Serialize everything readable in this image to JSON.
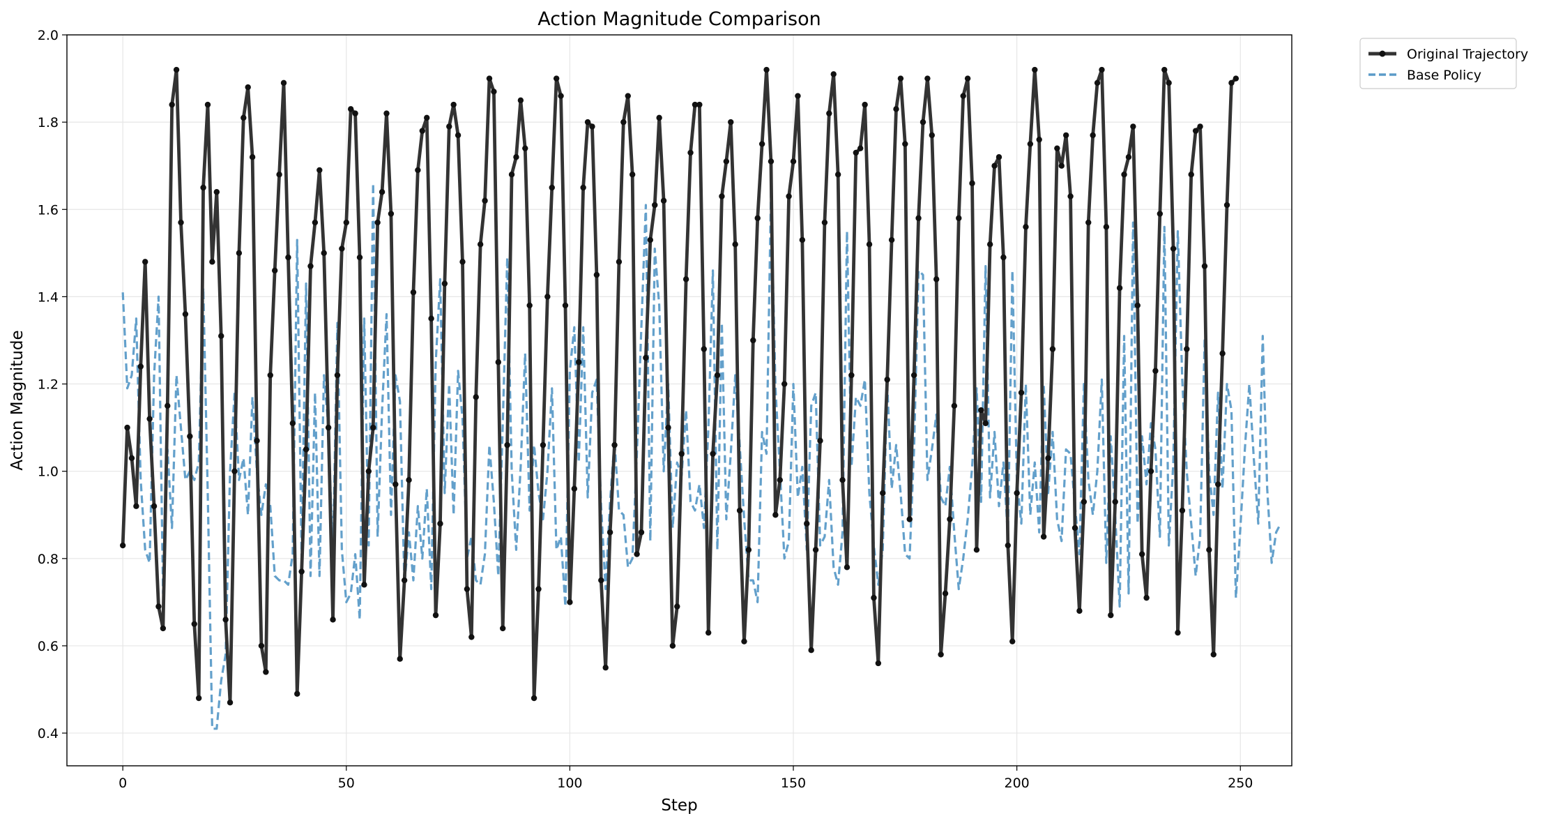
{
  "chart_data": {
    "type": "line",
    "title": "Action Magnitude Comparison",
    "xlabel": "Step",
    "ylabel": "Action Magnitude",
    "xlim": [
      -12.5,
      261.5
    ],
    "ylim": [
      0.325,
      2.0
    ],
    "xticks": [
      0,
      50,
      100,
      150,
      200,
      250
    ],
    "yticks": [
      0.4,
      0.6,
      0.8,
      1.0,
      1.2,
      1.4,
      1.6,
      1.8,
      2.0
    ],
    "grid": true,
    "legend": {
      "placement": "outside-top-right"
    },
    "series": [
      {
        "name": "Original Trajectory",
        "style": "solid-markers",
        "color": "#333333",
        "values": [
          0.83,
          1.1,
          1.03,
          0.92,
          1.24,
          1.48,
          1.12,
          0.92,
          0.69,
          0.64,
          1.15,
          1.84,
          1.92,
          1.57,
          1.36,
          1.08,
          0.65,
          0.48,
          1.65,
          1.84,
          1.48,
          1.64,
          1.31,
          0.66,
          0.47,
          1.0,
          1.5,
          1.81,
          1.88,
          1.72,
          1.07,
          0.6,
          0.54,
          1.22,
          1.46,
          1.68,
          1.89,
          1.49,
          1.11,
          0.49,
          0.77,
          1.05,
          1.47,
          1.57,
          1.69,
          1.5,
          1.1,
          0.66,
          1.22,
          1.51,
          1.57,
          1.83,
          1.82,
          1.49,
          0.74,
          1.0,
          1.1,
          1.57,
          1.64,
          1.82,
          1.59,
          0.97,
          0.57,
          0.75,
          0.98,
          1.41,
          1.69,
          1.78,
          1.81,
          1.35,
          0.67,
          0.88,
          1.43,
          1.79,
          1.84,
          1.77,
          1.48,
          0.73,
          0.62,
          1.17,
          1.52,
          1.62,
          1.9,
          1.87,
          1.25,
          0.64,
          1.06,
          1.68,
          1.72,
          1.85,
          1.74,
          1.38,
          0.48,
          0.73,
          1.06,
          1.4,
          1.65,
          1.9,
          1.86,
          1.38,
          0.7,
          0.96,
          1.25,
          1.65,
          1.8,
          1.79,
          1.45,
          0.75,
          0.55,
          0.86,
          1.06,
          1.48,
          1.8,
          1.86,
          1.68,
          0.81,
          0.86,
          1.26,
          1.53,
          1.61,
          1.81,
          1.62,
          1.1,
          0.6,
          0.69,
          1.04,
          1.44,
          1.73,
          1.84,
          1.84,
          1.28,
          0.63,
          1.04,
          1.22,
          1.63,
          1.71,
          1.8,
          1.52,
          0.91,
          0.61,
          0.82,
          1.3,
          1.58,
          1.75,
          1.92,
          1.71,
          0.9,
          0.98,
          1.2,
          1.63,
          1.71,
          1.86,
          1.53,
          0.88,
          0.59,
          0.82,
          1.07,
          1.57,
          1.82,
          1.91,
          1.68,
          0.98,
          0.78,
          1.22,
          1.73,
          1.74,
          1.84,
          1.52,
          0.71,
          0.56,
          0.95,
          1.21,
          1.53,
          1.83,
          1.9,
          1.75,
          0.89,
          1.22,
          1.58,
          1.8,
          1.9,
          1.77,
          1.44,
          0.58,
          0.72,
          0.89,
          1.15,
          1.58,
          1.86,
          1.9,
          1.66,
          0.82,
          1.14,
          1.11,
          1.52,
          1.7,
          1.72,
          1.49,
          0.83,
          0.61,
          0.95,
          1.18,
          1.56,
          1.75,
          1.92,
          1.76,
          0.85,
          1.03,
          1.28,
          1.74,
          1.7,
          1.77,
          1.63,
          0.87,
          0.68,
          0.93,
          1.57,
          1.77,
          1.89,
          1.92,
          1.56,
          0.67,
          0.93,
          1.42,
          1.68,
          1.72,
          1.79,
          1.38,
          0.81,
          0.71,
          1.0,
          1.23,
          1.59,
          1.92,
          1.89,
          1.51,
          0.63,
          0.91,
          1.28,
          1.68,
          1.78,
          1.79,
          1.47,
          0.82,
          0.58,
          0.97,
          1.27,
          1.61,
          1.89,
          1.9
        ]
      },
      {
        "name": "Base Policy",
        "style": "dashed",
        "color": "#5b9bc8",
        "values": [
          1.41,
          1.19,
          1.22,
          1.35,
          0.98,
          0.82,
          0.79,
          1.22,
          1.4,
          0.72,
          1.05,
          0.87,
          1.22,
          1.1,
          0.98,
          1.0,
          0.98,
          1.02,
          1.42,
          0.95,
          0.41,
          0.41,
          0.52,
          0.58,
          1.0,
          1.18,
          0.98,
          1.03,
          0.9,
          1.17,
          1.0,
          0.9,
          0.97,
          0.92,
          0.76,
          0.75,
          0.75,
          0.74,
          0.81,
          1.53,
          0.8,
          1.43,
          0.76,
          1.18,
          0.76,
          1.22,
          1.1,
          0.8,
          1.34,
          0.82,
          0.7,
          0.72,
          0.81,
          0.66,
          1.35,
          0.83,
          1.66,
          0.85,
          1.14,
          1.36,
          0.9,
          1.22,
          1.16,
          0.74,
          0.86,
          0.75,
          0.92,
          0.8,
          0.96,
          0.73,
          1.25,
          1.44,
          0.95,
          1.2,
          0.9,
          1.23,
          1.12,
          0.8,
          0.85,
          0.75,
          0.74,
          0.81,
          1.06,
          0.93,
          0.76,
          1.11,
          1.49,
          1.0,
          0.82,
          1.01,
          1.27,
          0.91,
          1.06,
          0.95,
          0.89,
          1.0,
          1.19,
          0.82,
          0.85,
          0.69,
          1.23,
          1.33,
          1.02,
          1.33,
          0.94,
          1.18,
          1.21,
          0.92,
          0.73,
          0.93,
          1.07,
          0.91,
          0.9,
          0.78,
          0.8,
          1.04,
          1.33,
          1.61,
          0.84,
          1.51,
          1.38,
          1.0,
          1.2,
          0.87,
          1.02,
          0.99,
          1.14,
          0.93,
          0.91,
          0.97,
          0.87,
          1.1,
          1.46,
          0.82,
          1.34,
          0.89,
          1.04,
          1.22,
          1.06,
          0.89,
          0.75,
          0.75,
          0.7,
          1.09,
          1.04,
          1.64,
          1.19,
          1.0,
          0.8,
          0.84,
          1.2,
          0.94,
          1.01,
          0.82,
          1.15,
          1.18,
          0.83,
          0.85,
          0.98,
          0.78,
          0.74,
          0.86,
          1.55,
          1.01,
          1.17,
          1.15,
          1.21,
          0.95,
          0.83,
          0.74,
          0.82,
          1.2,
          0.96,
          1.06,
          0.95,
          0.81,
          0.8,
          1.05,
          1.46,
          1.45,
          0.98,
          1.05,
          1.13,
          0.94,
          0.92,
          1.01,
          0.86,
          0.73,
          0.8,
          0.89,
          1.01,
          1.19,
          0.93,
          1.47,
          0.94,
          1.09,
          0.92,
          1.02,
          0.85,
          1.46,
          0.98,
          0.88,
          1.2,
          0.9,
          1.02,
          0.86,
          1.2,
          0.95,
          1.09,
          0.89,
          0.84,
          1.05,
          1.04,
          0.92,
          0.81,
          1.2,
          0.98,
          0.9,
          1.0,
          1.21,
          0.79,
          1.08,
          0.9,
          0.69,
          1.31,
          0.72,
          1.57,
          0.88,
          1.08,
          0.97,
          1.11,
          1.05,
          0.85,
          1.56,
          0.83,
          1.02,
          1.55,
          1.21,
          1.0,
          0.88,
          0.76,
          0.85,
          1.3,
          1.0,
          0.9,
          1.18,
          0.96,
          1.2,
          1.14,
          0.71,
          0.87,
          1.05,
          1.2,
          1.03,
          0.88,
          1.31,
          0.96,
          0.79,
          0.86,
          0.88
        ]
      }
    ]
  }
}
